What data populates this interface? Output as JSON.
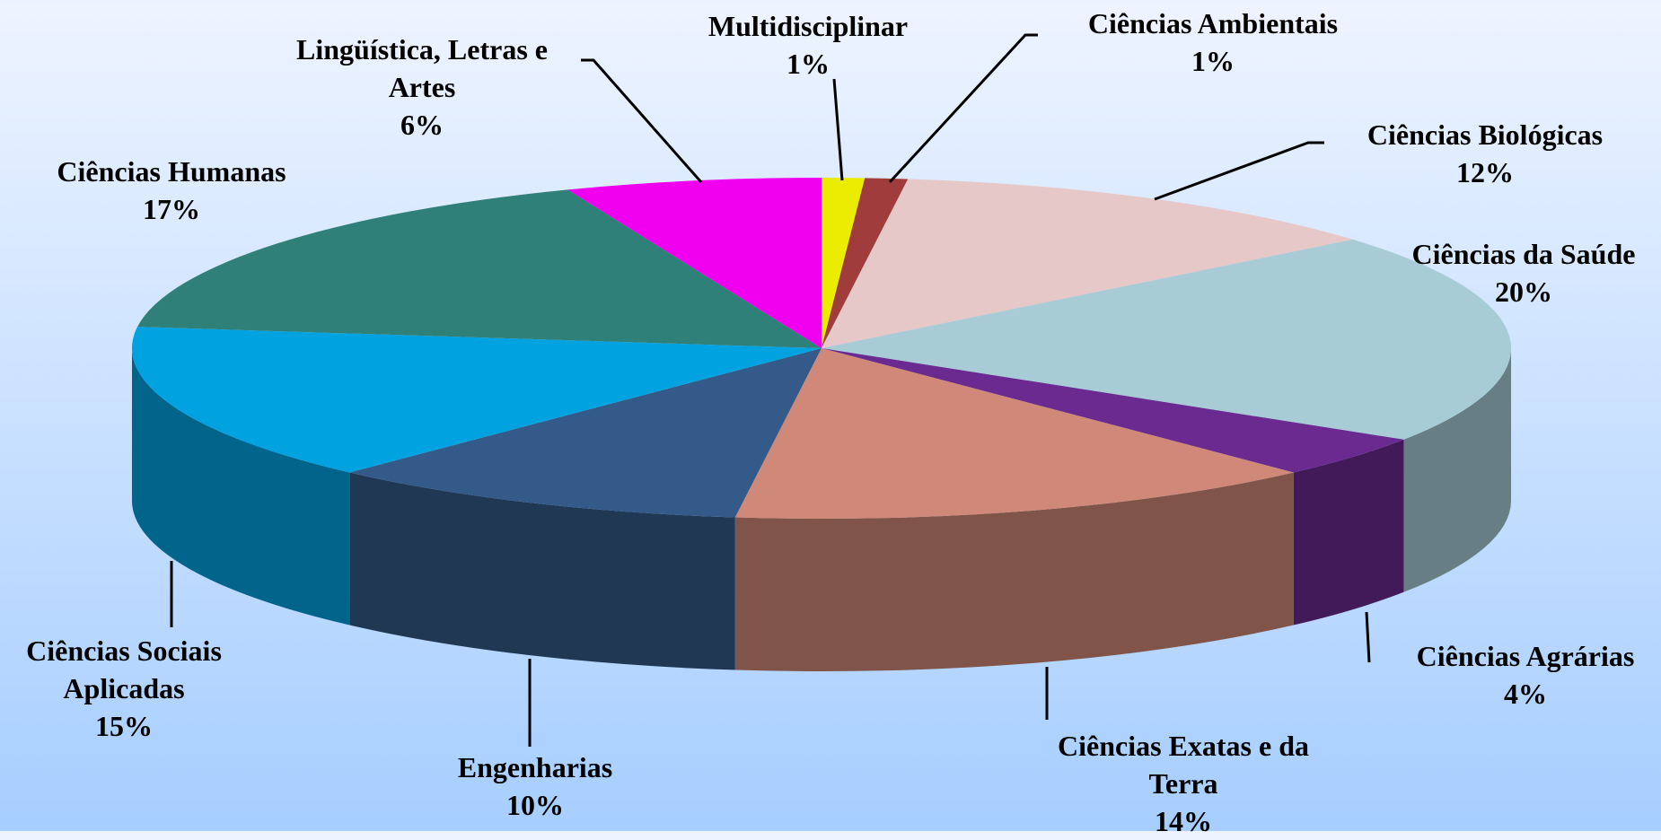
{
  "chart_data": {
    "type": "pie3d",
    "categories": [
      "Multidisciplinar",
      "Ciências Ambientais",
      "Ciências Biológicas",
      "Ciências da Saúde",
      "Ciências Agrárias",
      "Ciências Exatas e da Terra",
      "Engenharias",
      "Ciências Sociais Aplicadas",
      "Ciências Humanas",
      "Lingüística, Letras e Artes"
    ],
    "values": [
      1,
      1,
      12,
      20,
      4,
      14,
      10,
      15,
      17,
      6
    ],
    "value_labels": [
      "1%",
      "1%",
      "12%",
      "20%",
      "4%",
      "14%",
      "10%",
      "15%",
      "17%",
      "6%"
    ],
    "colors": [
      "#ecec00",
      "#a03c3c",
      "#e6c8c8",
      "#a8ccd6",
      "#6a2a90",
      "#d08878",
      "#335a88",
      "#00a2e0",
      "#30807a",
      "#f000ee"
    ]
  }
}
